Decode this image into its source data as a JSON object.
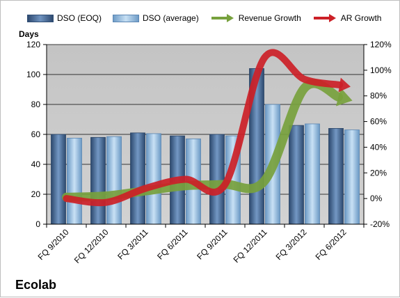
{
  "chart_data": {
    "type": "bar",
    "categories": [
      "FQ 9/2010",
      "FQ 12/2010",
      "FQ 3/2011",
      "FQ 6/2011",
      "FQ 9/2011",
      "FQ 12/2011",
      "FQ 3/2012",
      "FQ 6/2012"
    ],
    "series": [
      {
        "name": "DSO (EOQ)",
        "type": "bar",
        "axis": "left",
        "values": [
          60,
          58,
          61,
          59,
          60,
          104,
          66,
          64
        ],
        "color": "#4a6f9c"
      },
      {
        "name": "DSO (average)",
        "type": "bar",
        "axis": "left",
        "values": [
          57.5,
          58.5,
          60.5,
          57,
          59,
          80,
          67,
          63
        ],
        "color": "#9dc3e6"
      },
      {
        "name": "Revenue Growth",
        "type": "line-arrow",
        "axis": "right",
        "values": [
          0.01,
          0.02,
          0.06,
          0.1,
          0.11,
          0.14,
          0.86,
          0.78
        ],
        "color": "#77a13d"
      },
      {
        "name": "AR Growth",
        "type": "line-arrow",
        "axis": "right",
        "values": [
          0.0,
          -0.03,
          0.08,
          0.15,
          0.11,
          1.1,
          0.93,
          0.88
        ],
        "color": "#cc2027"
      }
    ],
    "y_left": {
      "label": "Days",
      "min": 0,
      "max": 120,
      "ticks": [
        "0",
        "20",
        "40",
        "60",
        "80",
        "100",
        "120"
      ]
    },
    "y_right": {
      "min": -0.2,
      "max": 1.2,
      "ticks": [
        "-20%",
        "0%",
        "20%",
        "40%",
        "60%",
        "80%",
        "100%",
        "120%"
      ]
    },
    "grid": true,
    "legend": "top",
    "company": "Ecolab"
  }
}
